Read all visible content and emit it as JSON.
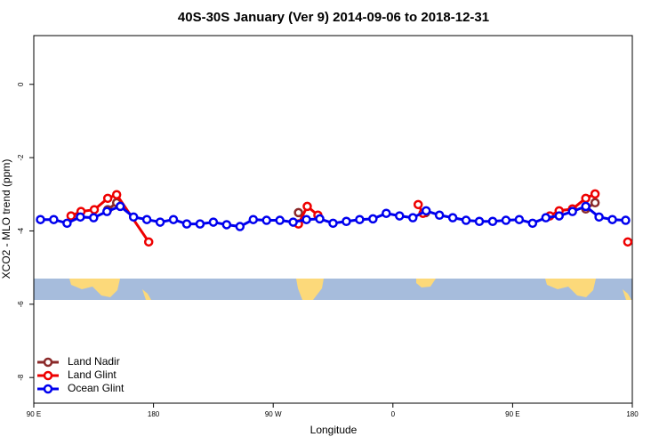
{
  "chart_data": {
    "type": "line",
    "title": "40S-30S January (Ver 9)   2014-09-06 to 2018-12-31",
    "xlabel": "Longitude",
    "ylabel": "XCO2 - MLO trend (ppm)",
    "xlim": [
      90,
      540
    ],
    "ylim": [
      -8.7,
      1.33
    ],
    "xticks": [
      {
        "value": 90,
        "label": "90 E"
      },
      180,
      {
        "value": 270,
        "label": "90 W"
      },
      {
        "value": 360,
        "label": "0"
      },
      {
        "value": 450,
        "label": "90 E"
      },
      {
        "value": 540,
        "label": "180"
      }
    ],
    "yticks": [
      -8,
      -6,
      -4,
      -2,
      0
    ],
    "legend": "bottom-left",
    "series": [
      {
        "name": "Land Nadir",
        "color": "#8b2a2a",
        "x": [
          145.6,
          152.3,
          null,
          289,
          null,
          384.6,
          null,
          505,
          512
        ],
        "values": [
          -3.42,
          -3.23,
          null,
          -3.5,
          null,
          -3.5,
          null,
          -3.4,
          -3.23
        ]
      },
      {
        "name": "Land Glint",
        "color": "#ee0000",
        "x": [
          118,
          125.5,
          135.5,
          145.6,
          152.3,
          176.4,
          null,
          289,
          295.6,
          303.6,
          null,
          379,
          382.6,
          null,
          478,
          485,
          495,
          505,
          512,
          null,
          536.6
        ],
        "values": [
          -3.59,
          -3.47,
          -3.42,
          -3.11,
          -3.01,
          -4.3,
          null,
          -3.81,
          -3.33,
          -3.57,
          null,
          -3.28,
          -3.52,
          null,
          -3.59,
          -3.45,
          -3.4,
          -3.11,
          -2.99,
          null,
          -4.3
        ]
      },
      {
        "name": "Ocean Glint",
        "color": "#0000ee",
        "x": [
          95,
          105,
          115,
          125,
          135,
          145,
          155,
          165,
          175,
          185,
          195,
          205,
          215,
          225,
          235,
          245,
          255,
          265,
          275,
          285,
          295,
          305,
          315,
          325,
          335,
          345,
          355,
          365,
          375,
          385,
          395,
          405,
          415,
          425,
          435,
          445,
          455,
          465,
          475,
          485,
          495,
          505,
          515,
          525,
          535
        ],
        "values": [
          -3.69,
          -3.69,
          -3.79,
          -3.62,
          -3.64,
          -3.47,
          -3.33,
          -3.62,
          -3.69,
          -3.76,
          -3.69,
          -3.81,
          -3.81,
          -3.76,
          -3.83,
          -3.88,
          -3.69,
          -3.71,
          -3.71,
          -3.76,
          -3.69,
          -3.67,
          -3.79,
          -3.74,
          -3.69,
          -3.67,
          -3.52,
          -3.59,
          -3.64,
          -3.45,
          -3.57,
          -3.64,
          -3.71,
          -3.74,
          -3.74,
          -3.71,
          -3.69,
          -3.79,
          -3.64,
          -3.59,
          -3.47,
          -3.33,
          -3.62,
          -3.69,
          -3.71
        ]
      }
    ]
  }
}
